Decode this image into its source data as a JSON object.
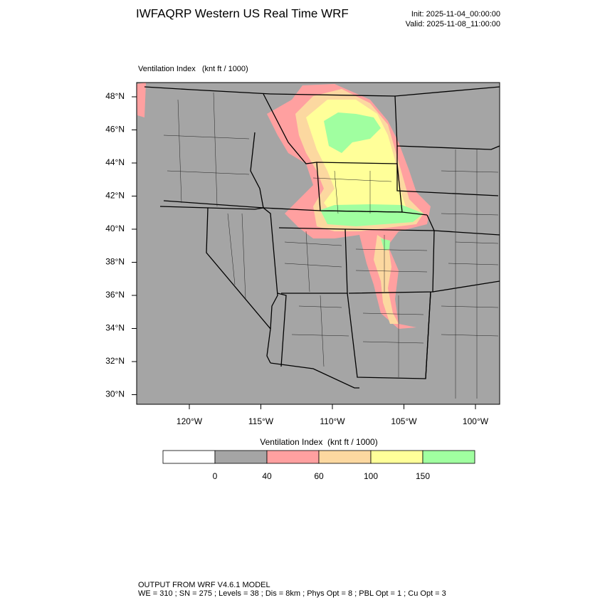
{
  "header": {
    "title": "IWFAQRP Western US Real Time WRF",
    "init": "Init: 2025-11-04_00:00:00",
    "valid": "Valid: 2025-11-08_11:00:00"
  },
  "map": {
    "field_label": "Ventilation Index   (knt ft / 1000)",
    "lat_labels": [
      "48°N",
      "46°N",
      "44°N",
      "42°N",
      "40°N",
      "38°N",
      "36°N",
      "34°N",
      "32°N",
      "30°N"
    ],
    "lon_labels": [
      "120°W",
      "115°W",
      "110°W",
      "105°W",
      "100°W"
    ]
  },
  "colorbar": {
    "title": "Ventilation Index  (knt ft / 1000)",
    "colors": [
      "#ffffff",
      "#a5a5a5",
      "#ffa0a0",
      "#fcd8a0",
      "#ffff99",
      "#a0ffa0"
    ],
    "ticks": [
      0,
      40,
      60,
      100,
      150
    ]
  },
  "footer": {
    "line1": "OUTPUT FROM WRF V4.6.1 MODEL",
    "line2": "WE = 310 ; SN = 275 ; Levels = 38 ; Dis = 8km ; Phys Opt = 8 ; PBL Opt = 1 ; Cu Opt = 3"
  }
}
